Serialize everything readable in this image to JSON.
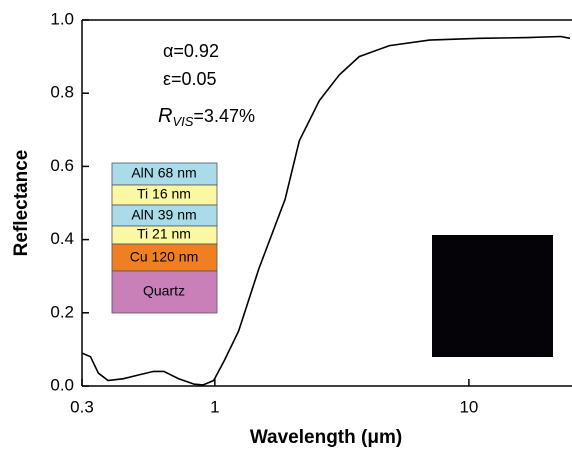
{
  "chart_data": {
    "type": "line",
    "xlabel": "Wavelength (μm)",
    "ylabel": "Reflectance",
    "log_x": true,
    "xlim": [
      0.3,
      25
    ],
    "ylim": [
      0,
      1
    ],
    "xticks": [
      0.3,
      1,
      10
    ],
    "yticks": [
      {
        "value": 0,
        "label": "0.0"
      },
      0.2,
      0.4,
      0.6,
      0.8,
      {
        "value": 1,
        "label": "1.0"
      }
    ],
    "series": [
      {
        "color": "#000000",
        "x": [
          0.3,
          0.324,
          0.348,
          0.38,
          0.437,
          0.5,
          0.574,
          0.63,
          0.72,
          0.83,
          0.9,
          0.99,
          1.09,
          1.24,
          1.49,
          1.89,
          2.15,
          2.58,
          3.09,
          3.7,
          4.87,
          7.0,
          11,
          17,
          23,
          25
        ],
        "values": [
          0.09,
          0.08,
          0.035,
          0.015,
          0.02,
          0.03,
          0.04,
          0.04,
          0.02,
          0.005,
          0.003,
          0.015,
          0.07,
          0.15,
          0.32,
          0.51,
          0.67,
          0.78,
          0.85,
          0.9,
          0.93,
          0.945,
          0.95,
          0.952,
          0.955,
          0.95
        ]
      }
    ],
    "annotations": {
      "alpha": "α=0.92",
      "epsilon": "ε=0.05",
      "r_symbol": "R",
      "r_subscript": "VIS",
      "r_value": "=3.47%"
    },
    "layers": [
      "AlN 68 nm",
      "Ti 16 nm",
      "AlN 39 nm",
      "Ti 21 nm",
      "Cu 120 nm",
      "Quartz"
    ]
  }
}
